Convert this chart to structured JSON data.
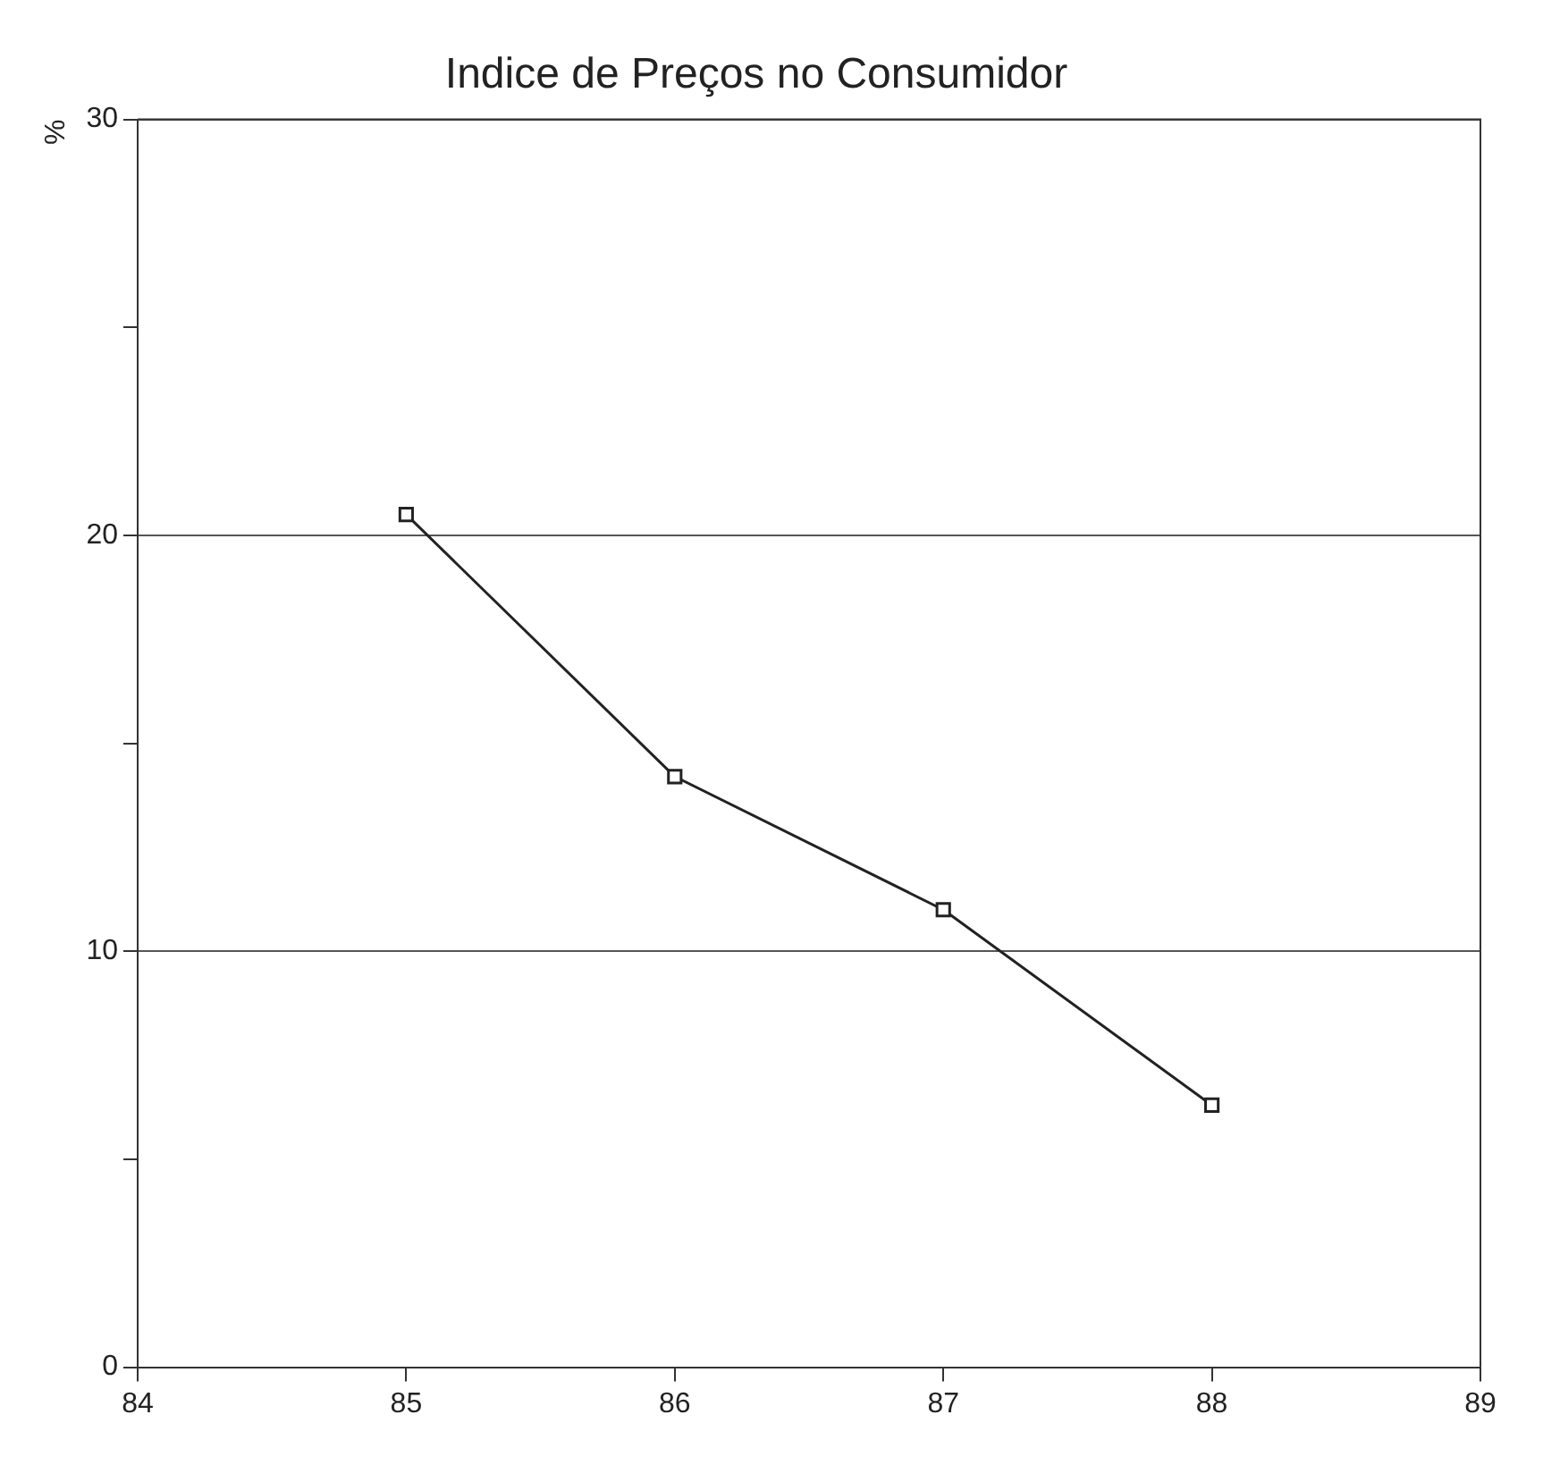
{
  "chart_data": {
    "type": "line",
    "title": "Indice de Preços no Consumidor",
    "ylabel": "%",
    "x": [
      85,
      86,
      87,
      88
    ],
    "series": [
      {
        "color": "#222222",
        "values": [
          20.5,
          14.2,
          11.0,
          6.3
        ]
      }
    ],
    "xlim": [
      84,
      89
    ],
    "xticks": [
      84,
      85,
      86,
      87,
      88,
      89
    ],
    "ylim": [
      0,
      30
    ],
    "yticks": [
      0,
      {
        "value": 5,
        "label": null
      },
      10,
      {
        "value": 15,
        "label": null
      },
      20,
      {
        "value": 25,
        "label": null
      },
      30
    ],
    "grid": "y",
    "legend": false,
    "marker": "square",
    "line_style": "solid"
  }
}
